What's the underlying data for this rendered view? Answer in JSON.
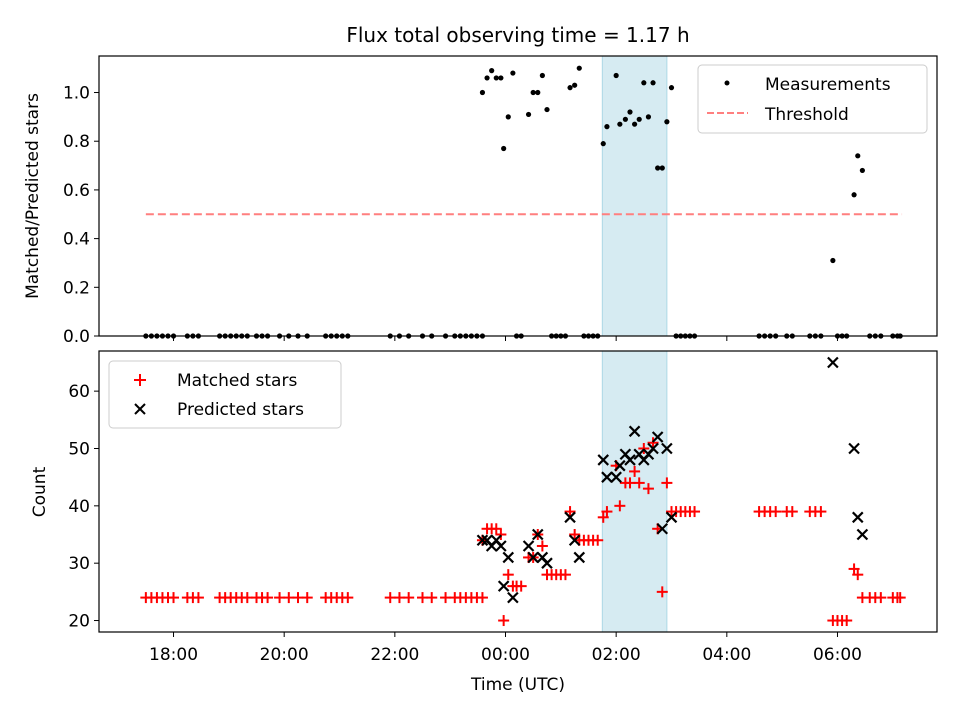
{
  "title": "Flux total observing time = 1.17 h",
  "colors": {
    "measurements": "#000000",
    "threshold": "#ff7f7f",
    "matched": "#ff0000",
    "predicted": "#000000",
    "highlight": "#add8e6"
  },
  "chart_data": [
    {
      "type": "scatter",
      "ylabel": "Matched/Predicted stars",
      "ylim": [
        0,
        1.15
      ],
      "yticks": [
        "0.0",
        "0.2",
        "0.4",
        "0.6",
        "0.8",
        "1.0"
      ],
      "legend": {
        "position": "top-right",
        "entries": [
          "Measurements",
          "Threshold"
        ]
      },
      "threshold": {
        "value": 0.5,
        "x_start": "17:30",
        "x_end": "07:10"
      },
      "highlight_span": [
        "01:45",
        "02:55"
      ],
      "series": [
        {
          "name": "Measurements",
          "points": [
            [
              "17:30",
              0
            ],
            [
              "17:36",
              0
            ],
            [
              "17:42",
              0
            ],
            [
              "17:48",
              0
            ],
            [
              "17:54",
              0
            ],
            [
              "18:00",
              0
            ],
            [
              "18:15",
              0
            ],
            [
              "18:21",
              0
            ],
            [
              "18:27",
              0
            ],
            [
              "18:50",
              0
            ],
            [
              "18:56",
              0
            ],
            [
              "19:02",
              0
            ],
            [
              "19:08",
              0
            ],
            [
              "19:14",
              0
            ],
            [
              "19:20",
              0
            ],
            [
              "19:30",
              0
            ],
            [
              "19:36",
              0
            ],
            [
              "19:42",
              0
            ],
            [
              "19:55",
              0
            ],
            [
              "20:05",
              0
            ],
            [
              "20:15",
              0
            ],
            [
              "20:25",
              0
            ],
            [
              "20:45",
              0
            ],
            [
              "20:51",
              0
            ],
            [
              "20:57",
              0
            ],
            [
              "21:03",
              0
            ],
            [
              "21:09",
              0
            ],
            [
              "21:55",
              0
            ],
            [
              "22:05",
              0
            ],
            [
              "22:15",
              0
            ],
            [
              "22:30",
              0
            ],
            [
              "22:40",
              0
            ],
            [
              "22:55",
              0
            ],
            [
              "23:05",
              0
            ],
            [
              "23:11",
              0
            ],
            [
              "23:17",
              0
            ],
            [
              "23:23",
              0
            ],
            [
              "23:29",
              0
            ],
            [
              "23:35",
              0
            ],
            [
              "23:35",
              1.0
            ],
            [
              "23:40",
              1.06
            ],
            [
              "23:45",
              1.09
            ],
            [
              "23:50",
              1.06
            ],
            [
              "23:55",
              1.06
            ],
            [
              "23:58",
              0.77
            ],
            [
              "00:03",
              0.9
            ],
            [
              "00:08",
              1.08
            ],
            [
              "00:12",
              0
            ],
            [
              "00:17",
              0
            ],
            [
              "00:25",
              0.91
            ],
            [
              "00:30",
              1.0
            ],
            [
              "00:35",
              1.0
            ],
            [
              "00:40",
              1.07
            ],
            [
              "00:45",
              0.93
            ],
            [
              "00:50",
              0
            ],
            [
              "00:55",
              0
            ],
            [
              "01:00",
              0
            ],
            [
              "01:05",
              0
            ],
            [
              "01:10",
              1.02
            ],
            [
              "01:15",
              1.03
            ],
            [
              "01:20",
              1.1
            ],
            [
              "01:25",
              0
            ],
            [
              "01:30",
              0
            ],
            [
              "01:35",
              0
            ],
            [
              "01:40",
              0
            ],
            [
              "01:46",
              0.79
            ],
            [
              "01:50",
              0.86
            ],
            [
              "02:00",
              1.07
            ],
            [
              "02:04",
              0.87
            ],
            [
              "02:10",
              0.89
            ],
            [
              "02:15",
              0.92
            ],
            [
              "02:20",
              0.87
            ],
            [
              "02:25",
              0.89
            ],
            [
              "02:30",
              1.04
            ],
            [
              "02:35",
              0.9
            ],
            [
              "02:40",
              1.04
            ],
            [
              "02:45",
              0.69
            ],
            [
              "02:50",
              0.69
            ],
            [
              "02:55",
              0.88
            ],
            [
              "03:00",
              1.02
            ],
            [
              "03:05",
              0
            ],
            [
              "03:10",
              0
            ],
            [
              "03:15",
              0
            ],
            [
              "03:20",
              0
            ],
            [
              "03:25",
              0
            ],
            [
              "04:35",
              0
            ],
            [
              "04:41",
              0
            ],
            [
              "04:47",
              0
            ],
            [
              "04:53",
              0
            ],
            [
              "05:05",
              0
            ],
            [
              "05:11",
              0
            ],
            [
              "05:30",
              0
            ],
            [
              "05:36",
              0
            ],
            [
              "05:42",
              0
            ],
            [
              "05:55",
              0.31
            ],
            [
              "06:00",
              0
            ],
            [
              "06:05",
              0
            ],
            [
              "06:10",
              0
            ],
            [
              "06:18",
              0.58
            ],
            [
              "06:22",
              0.74
            ],
            [
              "06:27",
              0.68
            ],
            [
              "06:35",
              0
            ],
            [
              "06:41",
              0
            ],
            [
              "06:47",
              0
            ],
            [
              "07:00",
              0
            ],
            [
              "07:05",
              0
            ],
            [
              "07:08",
              0
            ]
          ]
        },
        {
          "name": "Threshold",
          "values": [
            0.5,
            0.5
          ]
        }
      ]
    },
    {
      "type": "scatter",
      "xlabel": "Time (UTC)",
      "ylabel": "Count",
      "ylim": [
        18,
        67
      ],
      "yticks": [
        "20",
        "30",
        "40",
        "50",
        "60"
      ],
      "xticks": [
        "18:00",
        "20:00",
        "22:00",
        "00:00",
        "02:00",
        "04:00",
        "06:00"
      ],
      "legend": {
        "position": "top-left",
        "entries": [
          "Matched stars",
          "Predicted stars"
        ]
      },
      "highlight_span": [
        "01:45",
        "02:55"
      ],
      "series": [
        {
          "name": "Matched stars",
          "points": [
            [
              "17:30",
              24
            ],
            [
              "17:36",
              24
            ],
            [
              "17:42",
              24
            ],
            [
              "17:48",
              24
            ],
            [
              "17:54",
              24
            ],
            [
              "18:00",
              24
            ],
            [
              "18:15",
              24
            ],
            [
              "18:21",
              24
            ],
            [
              "18:27",
              24
            ],
            [
              "18:50",
              24
            ],
            [
              "18:56",
              24
            ],
            [
              "19:02",
              24
            ],
            [
              "19:08",
              24
            ],
            [
              "19:14",
              24
            ],
            [
              "19:20",
              24
            ],
            [
              "19:30",
              24
            ],
            [
              "19:36",
              24
            ],
            [
              "19:42",
              24
            ],
            [
              "19:55",
              24
            ],
            [
              "20:05",
              24
            ],
            [
              "20:15",
              24
            ],
            [
              "20:25",
              24
            ],
            [
              "20:45",
              24
            ],
            [
              "20:51",
              24
            ],
            [
              "20:57",
              24
            ],
            [
              "21:03",
              24
            ],
            [
              "21:09",
              24
            ],
            [
              "21:55",
              24
            ],
            [
              "22:05",
              24
            ],
            [
              "22:15",
              24
            ],
            [
              "22:30",
              24
            ],
            [
              "22:40",
              24
            ],
            [
              "22:55",
              24
            ],
            [
              "23:05",
              24
            ],
            [
              "23:11",
              24
            ],
            [
              "23:17",
              24
            ],
            [
              "23:23",
              24
            ],
            [
              "23:29",
              24
            ],
            [
              "23:35",
              24
            ],
            [
              "23:35",
              34
            ],
            [
              "23:40",
              36
            ],
            [
              "23:45",
              36
            ],
            [
              "23:50",
              36
            ],
            [
              "23:55",
              35
            ],
            [
              "23:58",
              20
            ],
            [
              "00:03",
              28
            ],
            [
              "00:08",
              26
            ],
            [
              "00:12",
              26
            ],
            [
              "00:17",
              26
            ],
            [
              "00:25",
              31
            ],
            [
              "00:30",
              31
            ],
            [
              "00:35",
              35
            ],
            [
              "00:40",
              33
            ],
            [
              "00:45",
              28
            ],
            [
              "00:50",
              28
            ],
            [
              "00:55",
              28
            ],
            [
              "01:00",
              28
            ],
            [
              "01:05",
              28
            ],
            [
              "01:10",
              39
            ],
            [
              "01:15",
              35
            ],
            [
              "01:20",
              34
            ],
            [
              "01:25",
              34
            ],
            [
              "01:30",
              34
            ],
            [
              "01:35",
              34
            ],
            [
              "01:40",
              34
            ],
            [
              "01:46",
              38
            ],
            [
              "01:50",
              39
            ],
            [
              "02:00",
              47
            ],
            [
              "02:04",
              40
            ],
            [
              "02:10",
              44
            ],
            [
              "02:15",
              44
            ],
            [
              "02:20",
              46
            ],
            [
              "02:25",
              44
            ],
            [
              "02:30",
              50
            ],
            [
              "02:35",
              43
            ],
            [
              "02:40",
              51
            ],
            [
              "02:45",
              36
            ],
            [
              "02:50",
              25
            ],
            [
              "02:55",
              44
            ],
            [
              "03:00",
              39
            ],
            [
              "03:05",
              39
            ],
            [
              "03:10",
              39
            ],
            [
              "03:15",
              39
            ],
            [
              "03:20",
              39
            ],
            [
              "03:25",
              39
            ],
            [
              "04:35",
              39
            ],
            [
              "04:41",
              39
            ],
            [
              "04:47",
              39
            ],
            [
              "04:53",
              39
            ],
            [
              "05:05",
              39
            ],
            [
              "05:11",
              39
            ],
            [
              "05:30",
              39
            ],
            [
              "05:36",
              39
            ],
            [
              "05:42",
              39
            ],
            [
              "05:55",
              20
            ],
            [
              "06:00",
              20
            ],
            [
              "06:05",
              20
            ],
            [
              "06:10",
              20
            ],
            [
              "06:18",
              29
            ],
            [
              "06:22",
              28
            ],
            [
              "06:27",
              24
            ],
            [
              "06:35",
              24
            ],
            [
              "06:41",
              24
            ],
            [
              "06:47",
              24
            ],
            [
              "07:00",
              24
            ],
            [
              "07:05",
              24
            ],
            [
              "07:08",
              24
            ]
          ]
        },
        {
          "name": "Predicted stars",
          "points": [
            [
              "23:35",
              34
            ],
            [
              "23:40",
              34
            ],
            [
              "23:45",
              33
            ],
            [
              "23:50",
              34
            ],
            [
              "23:55",
              33
            ],
            [
              "23:58",
              26
            ],
            [
              "00:03",
              31
            ],
            [
              "00:08",
              24
            ],
            [
              "00:25",
              33
            ],
            [
              "00:30",
              31
            ],
            [
              "00:35",
              35
            ],
            [
              "00:40",
              31
            ],
            [
              "00:45",
              30
            ],
            [
              "01:10",
              38
            ],
            [
              "01:15",
              34
            ],
            [
              "01:20",
              31
            ],
            [
              "01:46",
              48
            ],
            [
              "01:50",
              45
            ],
            [
              "02:00",
              45
            ],
            [
              "02:04",
              47
            ],
            [
              "02:10",
              49
            ],
            [
              "02:15",
              48
            ],
            [
              "02:20",
              53
            ],
            [
              "02:25",
              49
            ],
            [
              "02:30",
              48
            ],
            [
              "02:35",
              49
            ],
            [
              "02:40",
              50
            ],
            [
              "02:45",
              52
            ],
            [
              "02:50",
              36
            ],
            [
              "02:55",
              50
            ],
            [
              "03:00",
              38
            ],
            [
              "05:55",
              65
            ],
            [
              "06:18",
              50
            ],
            [
              "06:22",
              38
            ],
            [
              "06:27",
              35
            ]
          ]
        }
      ]
    }
  ]
}
